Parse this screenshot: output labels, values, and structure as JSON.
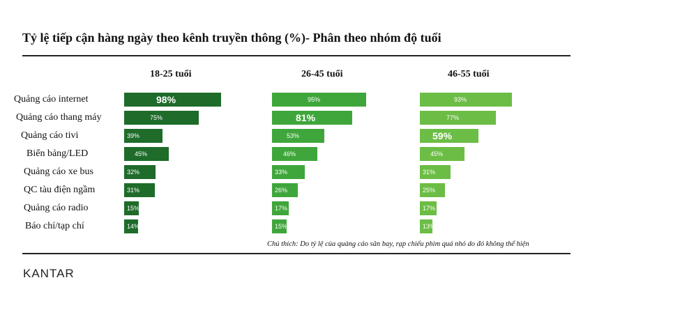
{
  "title": "Tỷ lệ tiếp cận hàng ngày theo kênh truyền thông (%)- Phân theo nhóm độ tuổi",
  "note": "Chú thích: Do tỷ lệ của quảng cáo sân bay, rạp chiếu phim quá nhỏ do đó không thể hiện",
  "brand": "KANTAR",
  "colors": {
    "group_18_25": "#1e6b2a",
    "group_26_45": "#3fa63b",
    "group_46_55": "#6cbd45"
  },
  "chart_data": {
    "type": "bar",
    "orientation": "horizontal",
    "title": "Tỷ lệ tiếp cận hàng ngày theo kênh truyền thông (%)- Phân theo nhóm độ tuổi",
    "unit": "%",
    "categories": [
      "Quảng cáo internet",
      "Quảng cáo thang máy",
      "Quảng cáo tivi",
      "Biển bảng/LED",
      "Quảng cáo xe bus",
      "QC tàu điện ngầm",
      "Quảng cáo radio",
      "Báo chí/tạp chí"
    ],
    "series": [
      {
        "name": "18-25 tuổi",
        "values": [
          98,
          75,
          39,
          45,
          32,
          31,
          15,
          14
        ],
        "labels": [
          "98%",
          "75%",
          "39%",
          "45%",
          "32%",
          "31%",
          "15%",
          "14%"
        ],
        "highlight_index": 0
      },
      {
        "name": "26-45 tuổi",
        "values": [
          95,
          81,
          53,
          46,
          33,
          26,
          17,
          15
        ],
        "labels": [
          "95%",
          "81%",
          "53%",
          "46%",
          "33%",
          "26%",
          "17%",
          "15%"
        ],
        "highlight_index": 1
      },
      {
        "name": "46-55 tuổi",
        "values": [
          93,
          77,
          59,
          45,
          31,
          25,
          17,
          13
        ],
        "labels": [
          "93%",
          "77%",
          "59%",
          "45%",
          "31%",
          "25%",
          "17%",
          "13%"
        ],
        "highlight_index": 2
      }
    ],
    "xlim": [
      0,
      100
    ],
    "grid": false
  }
}
